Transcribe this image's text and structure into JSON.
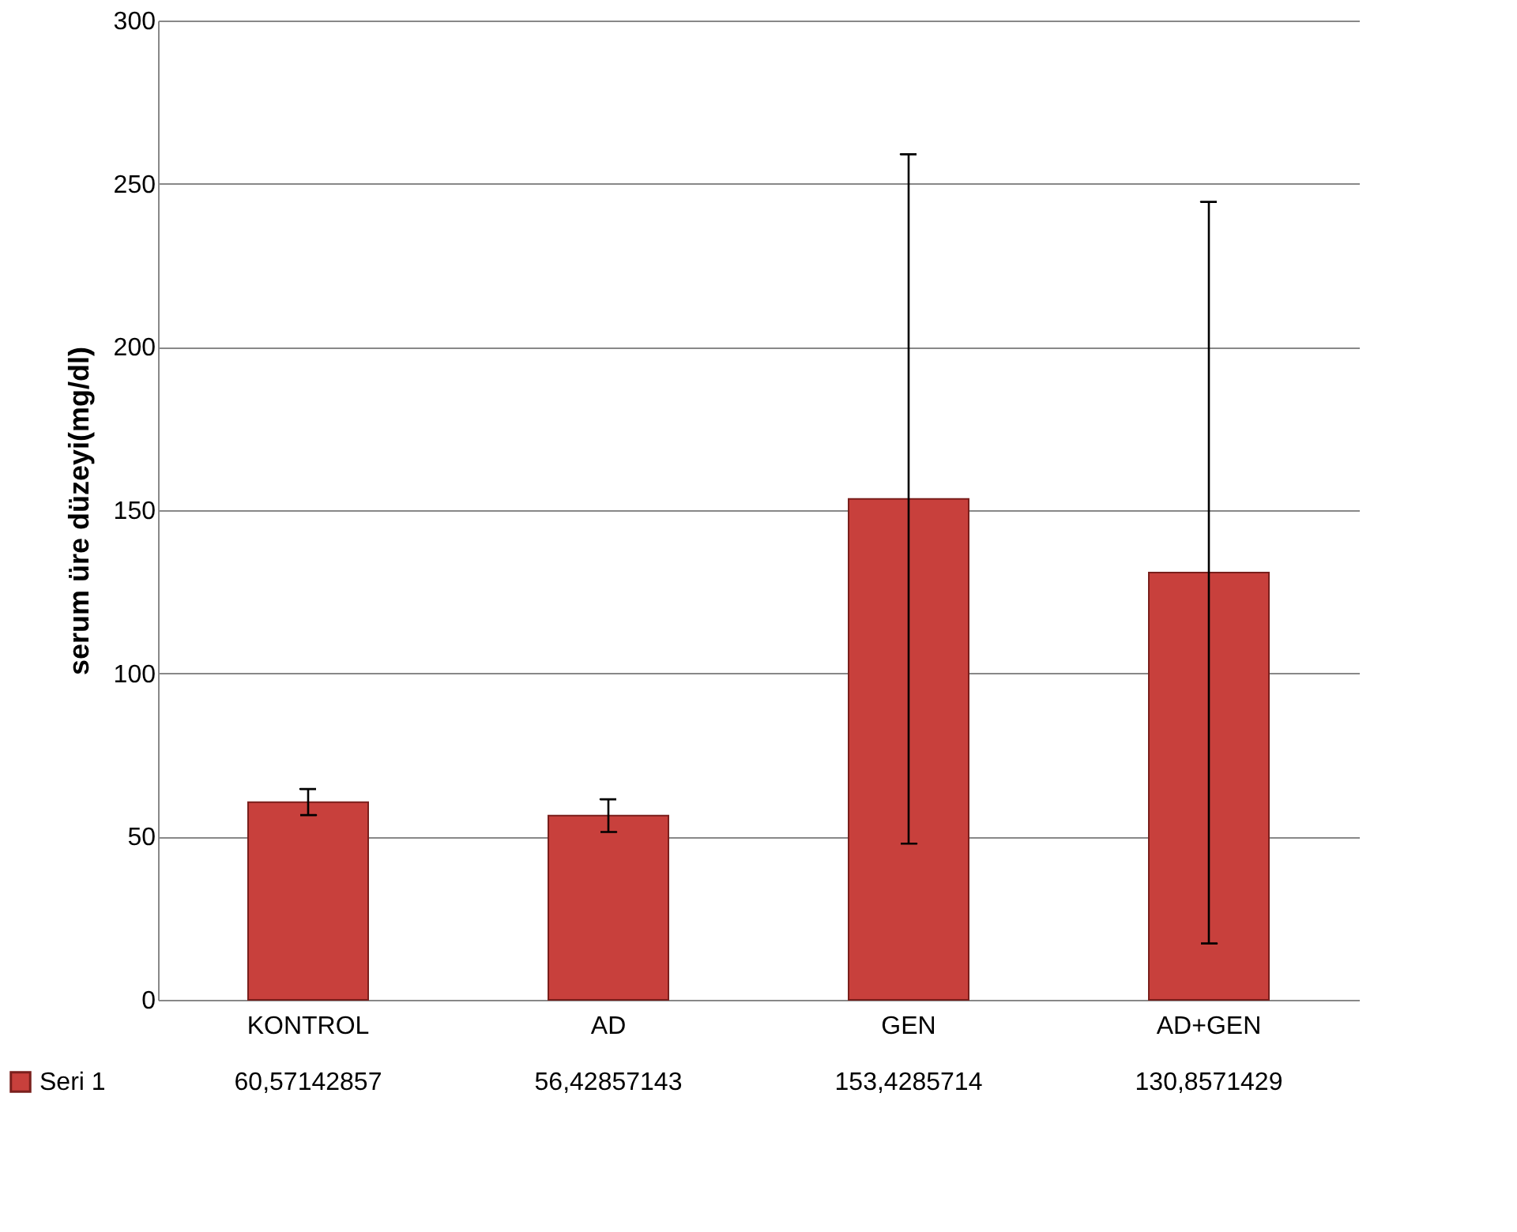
{
  "chart_data": {
    "type": "bar",
    "ylabel": "serum üre düzeyi(mg/dl)",
    "categories": [
      "KONTROL",
      "AD",
      "GEN",
      "AD+GEN"
    ],
    "series": [
      {
        "name": "Seri 1",
        "color": "#c8403c",
        "values": [
          60.57142857,
          56.42857143,
          153.4285714,
          130.8571429
        ],
        "errors": [
          4,
          5,
          105.6,
          113.6
        ],
        "value_labels": [
          "60,57142857",
          "56,42857143",
          "153,4285714",
          "130,8571429"
        ]
      }
    ],
    "ylim": [
      0,
      300
    ],
    "yticks": [
      0,
      50,
      100,
      150,
      200,
      250,
      300
    ],
    "grid": "y",
    "legend": "bottom left"
  }
}
